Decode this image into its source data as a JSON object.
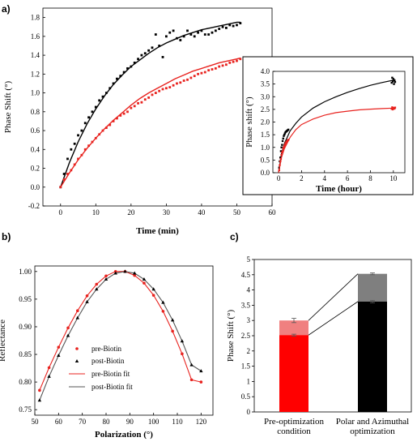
{
  "figure": {
    "panel_labels": [
      "a)",
      "b)",
      "c)"
    ]
  },
  "chart_data": [
    {
      "id": "a_main",
      "type": "scatter",
      "xlabel": "Time (min)",
      "ylabel": "Phase Shift (°)",
      "xlim": [
        -5,
        60
      ],
      "ylim": [
        -0.2,
        1.9
      ],
      "xticks": [
        0,
        10,
        20,
        30,
        40,
        50,
        60
      ],
      "yticks": [
        -0.2,
        0.0,
        0.2,
        0.4,
        0.6,
        0.8,
        1.0,
        1.2,
        1.4,
        1.6,
        1.8
      ],
      "ytick_labels": [
        "-0.2",
        "0.0",
        "0.2",
        "0.4",
        "0.6",
        "0.8",
        "1.0",
        "1.2",
        "1.4",
        "1.6",
        "1.8"
      ],
      "grid": false,
      "series": [
        {
          "color": "#000000",
          "points_x": [
            0,
            1,
            2,
            3,
            4,
            5,
            6,
            7,
            8,
            9,
            10,
            11,
            12,
            13,
            14,
            15,
            16,
            17,
            18,
            19,
            20,
            21,
            22,
            23,
            24,
            25,
            26,
            27,
            28,
            29,
            30,
            31,
            32,
            33,
            34,
            35,
            36,
            37,
            38,
            39,
            40,
            41,
            42,
            43,
            44,
            45,
            46,
            47,
            48,
            49,
            50,
            51
          ],
          "points_y": [
            0.0,
            0.14,
            0.3,
            0.4,
            0.46,
            0.55,
            0.6,
            0.68,
            0.74,
            0.8,
            0.85,
            0.92,
            0.96,
            1.0,
            1.05,
            1.1,
            1.15,
            1.18,
            1.22,
            1.26,
            1.28,
            1.32,
            1.36,
            1.4,
            1.42,
            1.45,
            1.48,
            1.62,
            1.5,
            1.38,
            1.6,
            1.64,
            1.66,
            1.58,
            1.56,
            1.6,
            1.66,
            1.62,
            1.6,
            1.64,
            1.66,
            1.62,
            1.62,
            1.64,
            1.66,
            1.68,
            1.7,
            1.69,
            1.72,
            1.71,
            1.72,
            1.74
          ],
          "fit_x": [
            0,
            2.5,
            5,
            7.5,
            10,
            12.5,
            15,
            17.5,
            20,
            22.5,
            25,
            27.5,
            30,
            32.5,
            35,
            37.5,
            40,
            42.5,
            45,
            47.5,
            50,
            51
          ],
          "fit_y": [
            0.0,
            0.26,
            0.48,
            0.67,
            0.83,
            0.97,
            1.09,
            1.19,
            1.28,
            1.35,
            1.42,
            1.48,
            1.53,
            1.57,
            1.61,
            1.64,
            1.67,
            1.69,
            1.71,
            1.73,
            1.75,
            1.75
          ]
        },
        {
          "color": "#e8231f",
          "points_x": [
            0,
            1,
            2,
            3,
            4,
            5,
            6,
            7,
            8,
            9,
            10,
            11,
            12,
            13,
            14,
            15,
            16,
            17,
            18,
            19,
            20,
            21,
            22,
            23,
            24,
            25,
            26,
            27,
            28,
            29,
            30,
            31,
            32,
            33,
            34,
            35,
            36,
            37,
            38,
            39,
            40,
            41,
            42,
            43,
            44,
            45,
            46,
            47,
            48,
            49,
            50,
            51
          ],
          "points_y": [
            0.0,
            0.08,
            0.14,
            0.18,
            0.24,
            0.3,
            0.34,
            0.4,
            0.44,
            0.48,
            0.52,
            0.56,
            0.6,
            0.63,
            0.66,
            0.7,
            0.73,
            0.76,
            0.78,
            0.8,
            0.84,
            0.86,
            0.89,
            0.9,
            0.93,
            0.95,
            0.98,
            1.0,
            1.02,
            1.04,
            1.05,
            1.06,
            1.08,
            1.1,
            1.11,
            1.13,
            1.14,
            1.16,
            1.18,
            1.2,
            1.21,
            1.22,
            1.24,
            1.25,
            1.26,
            1.28,
            1.29,
            1.3,
            1.32,
            1.33,
            1.34,
            1.36
          ],
          "fit_x": [
            0,
            2.5,
            5,
            7.5,
            10,
            12.5,
            15,
            17.5,
            20,
            22.5,
            25,
            27.5,
            30,
            32.5,
            35,
            37.5,
            40,
            42.5,
            45,
            47.5,
            50,
            51
          ],
          "fit_y": [
            0.0,
            0.15,
            0.29,
            0.41,
            0.52,
            0.62,
            0.71,
            0.79,
            0.87,
            0.94,
            1.0,
            1.05,
            1.1,
            1.15,
            1.19,
            1.23,
            1.26,
            1.29,
            1.32,
            1.34,
            1.36,
            1.37
          ]
        }
      ]
    },
    {
      "id": "a_inset",
      "type": "scatter",
      "xlabel": "Time (hour)",
      "ylabel": "Phase shift (°)",
      "xlim": [
        -0.5,
        11
      ],
      "ylim": [
        0,
        4.0
      ],
      "xticks": [
        0,
        2,
        4,
        6,
        8,
        10
      ],
      "yticks": [
        0.0,
        0.5,
        1.0,
        1.5,
        2.0,
        2.5,
        3.0,
        3.5,
        4.0
      ],
      "ytick_labels": [
        "0.0",
        "0.5",
        "1.0",
        "1.5",
        "2.0",
        "2.5",
        "3.0",
        "3.5",
        "4.0"
      ],
      "grid": false,
      "series": [
        {
          "color": "#000000",
          "points_x": [
            0.05,
            0.1,
            0.15,
            0.2,
            0.25,
            0.3,
            0.35,
            0.4,
            0.45,
            0.5,
            0.55,
            0.6,
            0.65,
            0.7,
            0.75,
            0.8,
            0.85,
            9.85,
            9.9,
            9.95,
            10.0,
            10.05,
            10.1,
            10.15
          ],
          "points_y": [
            0.2,
            0.45,
            0.6,
            0.85,
            1.0,
            1.1,
            1.25,
            1.35,
            1.45,
            1.5,
            1.55,
            1.6,
            1.62,
            1.64,
            1.66,
            1.68,
            1.7,
            3.55,
            3.75,
            3.6,
            3.7,
            3.5,
            3.65,
            3.58
          ],
          "fit_x": [
            0,
            0.25,
            0.5,
            1,
            1.5,
            2,
            3,
            4,
            5,
            6,
            7,
            8,
            9,
            10
          ],
          "fit_y": [
            0.0,
            0.75,
            1.15,
            1.65,
            1.95,
            2.2,
            2.55,
            2.8,
            3.0,
            3.17,
            3.32,
            3.45,
            3.56,
            3.65
          ]
        },
        {
          "color": "#e8231f",
          "points_x": [
            0.05,
            0.1,
            0.15,
            0.2,
            0.25,
            0.3,
            0.35,
            0.4,
            0.45,
            0.5,
            0.55,
            0.6,
            0.65,
            0.7,
            0.75,
            0.8,
            0.85,
            9.85,
            9.9,
            9.95,
            10.0,
            10.05,
            10.1,
            10.15
          ],
          "points_y": [
            0.1,
            0.3,
            0.45,
            0.55,
            0.7,
            0.8,
            0.85,
            0.95,
            1.0,
            1.05,
            1.1,
            1.15,
            1.2,
            1.22,
            1.25,
            1.28,
            1.3,
            2.52,
            2.58,
            2.5,
            2.56,
            2.54,
            2.53,
            2.57
          ],
          "fit_x": [
            0,
            0.25,
            0.5,
            1,
            1.5,
            2,
            3,
            4,
            5,
            6,
            7,
            8,
            9,
            10
          ],
          "fit_y": [
            0.0,
            0.6,
            0.95,
            1.4,
            1.7,
            1.9,
            2.12,
            2.27,
            2.37,
            2.43,
            2.48,
            2.51,
            2.53,
            2.55
          ]
        }
      ]
    },
    {
      "id": "b",
      "type": "line",
      "xlabel": "Polarization (°)",
      "ylabel": "Reflectance",
      "xlim": [
        50,
        125
      ],
      "ylim": [
        0.74,
        1.01
      ],
      "xticks": [
        50,
        60,
        70,
        80,
        90,
        100,
        110,
        120
      ],
      "yticks": [
        0.75,
        0.8,
        0.85,
        0.9,
        0.95,
        1.0
      ],
      "ytick_labels": [
        "0.75",
        "0.80",
        "0.85",
        "0.90",
        "0.95",
        "1.00"
      ],
      "grid": false,
      "legend_position": "lower-left",
      "series": [
        {
          "name": "pre-Biotin",
          "marker": "circle",
          "color": "#e8231f",
          "x": [
            52,
            56,
            60,
            64,
            68,
            72,
            76,
            80,
            84,
            88,
            92,
            96,
            100,
            104,
            108,
            112,
            116,
            120
          ],
          "y": [
            0.785,
            0.826,
            0.863,
            0.898,
            0.929,
            0.956,
            0.977,
            0.992,
            1.0,
            1.0,
            0.993,
            0.979,
            0.957,
            0.928,
            0.892,
            0.851,
            0.804,
            0.8
          ]
        },
        {
          "name": "post-Biotin",
          "marker": "triangle",
          "color": "#000000",
          "x": [
            52,
            56,
            60,
            64,
            68,
            72,
            76,
            80,
            84,
            88,
            92,
            96,
            100,
            104,
            108,
            112,
            116,
            120
          ],
          "y": [
            0.767,
            0.81,
            0.848,
            0.884,
            0.916,
            0.945,
            0.968,
            0.986,
            0.997,
            1.0,
            0.997,
            0.986,
            0.968,
            0.944,
            0.912,
            0.874,
            0.831,
            0.82
          ]
        },
        {
          "name": "pre-Biotin fit",
          "color": "#e8231f",
          "x": [
            52,
            56,
            60,
            64,
            68,
            72,
            76,
            80,
            84,
            88,
            92,
            96,
            100,
            104,
            108,
            112,
            116,
            120
          ],
          "y": [
            0.785,
            0.826,
            0.863,
            0.898,
            0.929,
            0.956,
            0.977,
            0.992,
            1.0,
            1.0,
            0.993,
            0.979,
            0.957,
            0.928,
            0.892,
            0.851,
            0.804,
            0.8
          ]
        },
        {
          "name": "post-Biotin fit",
          "color": "#555555",
          "x": [
            52,
            56,
            60,
            64,
            68,
            72,
            76,
            80,
            84,
            88,
            92,
            96,
            100,
            104,
            108,
            112,
            116,
            120
          ],
          "y": [
            0.767,
            0.81,
            0.848,
            0.884,
            0.916,
            0.945,
            0.968,
            0.986,
            0.997,
            1.0,
            0.997,
            0.986,
            0.968,
            0.944,
            0.912,
            0.874,
            0.831,
            0.82
          ]
        }
      ]
    },
    {
      "id": "c",
      "type": "bar",
      "ylabel": "Phase Shift (°)",
      "ylim": [
        0,
        5
      ],
      "yticks": [
        0,
        0.5,
        1,
        1.5,
        2,
        2.5,
        3,
        3.5,
        4,
        4.5,
        5
      ],
      "ytick_labels": [
        "0",
        "0.5",
        "1",
        "1.5",
        "2",
        "2.5",
        "3",
        "3.5",
        "4",
        "4.5",
        "5"
      ],
      "categories": [
        "Pre-optimization\ncondition",
        "Polar and Azimuthal\noptimization"
      ],
      "stacked": true,
      "bars": [
        {
          "base": 2.52,
          "base_err": 0.03,
          "total": 3.0,
          "total_err": 0.07,
          "base_color": "#ff0000",
          "top_color": "#f08080"
        },
        {
          "base": 3.62,
          "base_err": 0.04,
          "total": 4.53,
          "total_err": 0.03,
          "base_color": "#000000",
          "top_color": "#7f7f7f"
        }
      ]
    }
  ]
}
